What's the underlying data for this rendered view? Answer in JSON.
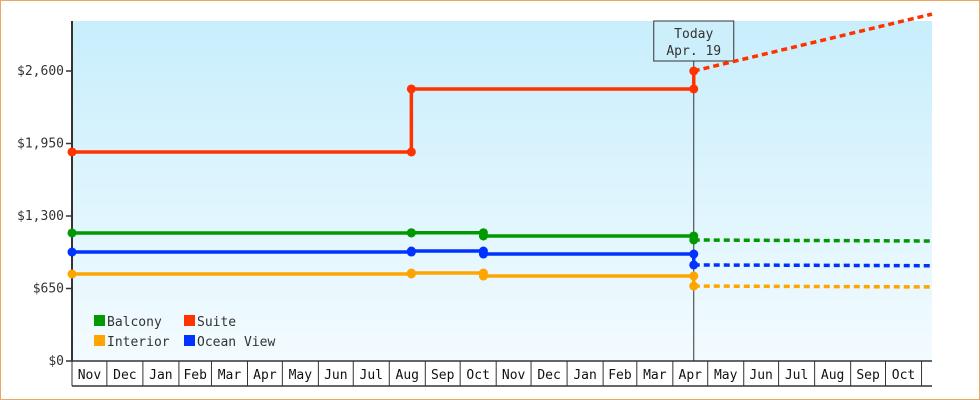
{
  "chart_data": {
    "type": "line",
    "step": true,
    "x_type": "date",
    "xlim": [
      "2018-11-01",
      "2020-11-10"
    ],
    "ylim": [
      0,
      3100
    ],
    "y_ticks": [
      0,
      650,
      1300,
      1950,
      2600
    ],
    "y_tick_labels": [
      "$0",
      "$650",
      "$1,300",
      "$1,950",
      "$2,600"
    ],
    "x_tick_labels": [
      "Nov",
      "Dec",
      "Jan",
      "Feb",
      "Mar",
      "Apr",
      "May",
      "Jun",
      "Jul",
      "Aug",
      "Sep",
      "Oct",
      "Nov",
      "Dec",
      "Jan",
      "Feb",
      "Mar",
      "Apr",
      "May",
      "Jun",
      "Jul",
      "Aug",
      "Sep",
      "Oct"
    ],
    "grid": false,
    "legend_position": "bottom-left",
    "today": {
      "date": "2020-04-19",
      "label_line1": "Today",
      "label_line2": "Apr. 19"
    },
    "series": [
      {
        "name": "Balcony",
        "color": "#009900",
        "x": [
          "2018-11-01",
          "2019-08-20",
          "2019-10-21",
          "2020-04-19"
        ],
        "values": [
          1148,
          1150,
          1121,
          1085
        ],
        "forecast_x": [
          "2020-04-19",
          "2020-08-01",
          "2020-11-10"
        ],
        "forecast_values": [
          1085,
          1080,
          1076
        ]
      },
      {
        "name": "Suite",
        "color": "#ff3300",
        "x": [
          "2018-11-01",
          "2019-08-20",
          "2020-04-19"
        ],
        "values": [
          1874,
          2439,
          2600
        ],
        "forecast_x": [
          "2020-04-19",
          "2020-11-10"
        ],
        "forecast_values": [
          2600,
          3110
        ]
      },
      {
        "name": "Interior",
        "color": "#ffa500",
        "x": [
          "2018-11-01",
          "2019-08-20",
          "2019-10-21",
          "2020-04-19"
        ],
        "values": [
          780,
          789,
          762,
          672
        ],
        "forecast_x": [
          "2020-04-19",
          "2020-08-01",
          "2020-11-10"
        ],
        "forecast_values": [
          672,
          668,
          664
        ]
      },
      {
        "name": "Ocean View",
        "color": "#0033ff",
        "x": [
          "2018-11-01",
          "2019-08-20",
          "2019-10-21",
          "2020-04-19"
        ],
        "values": [
          977,
          986,
          959,
          861
        ],
        "forecast_x": [
          "2020-04-19",
          "2020-08-01",
          "2020-11-10"
        ],
        "forecast_values": [
          861,
          858,
          854
        ]
      }
    ]
  }
}
